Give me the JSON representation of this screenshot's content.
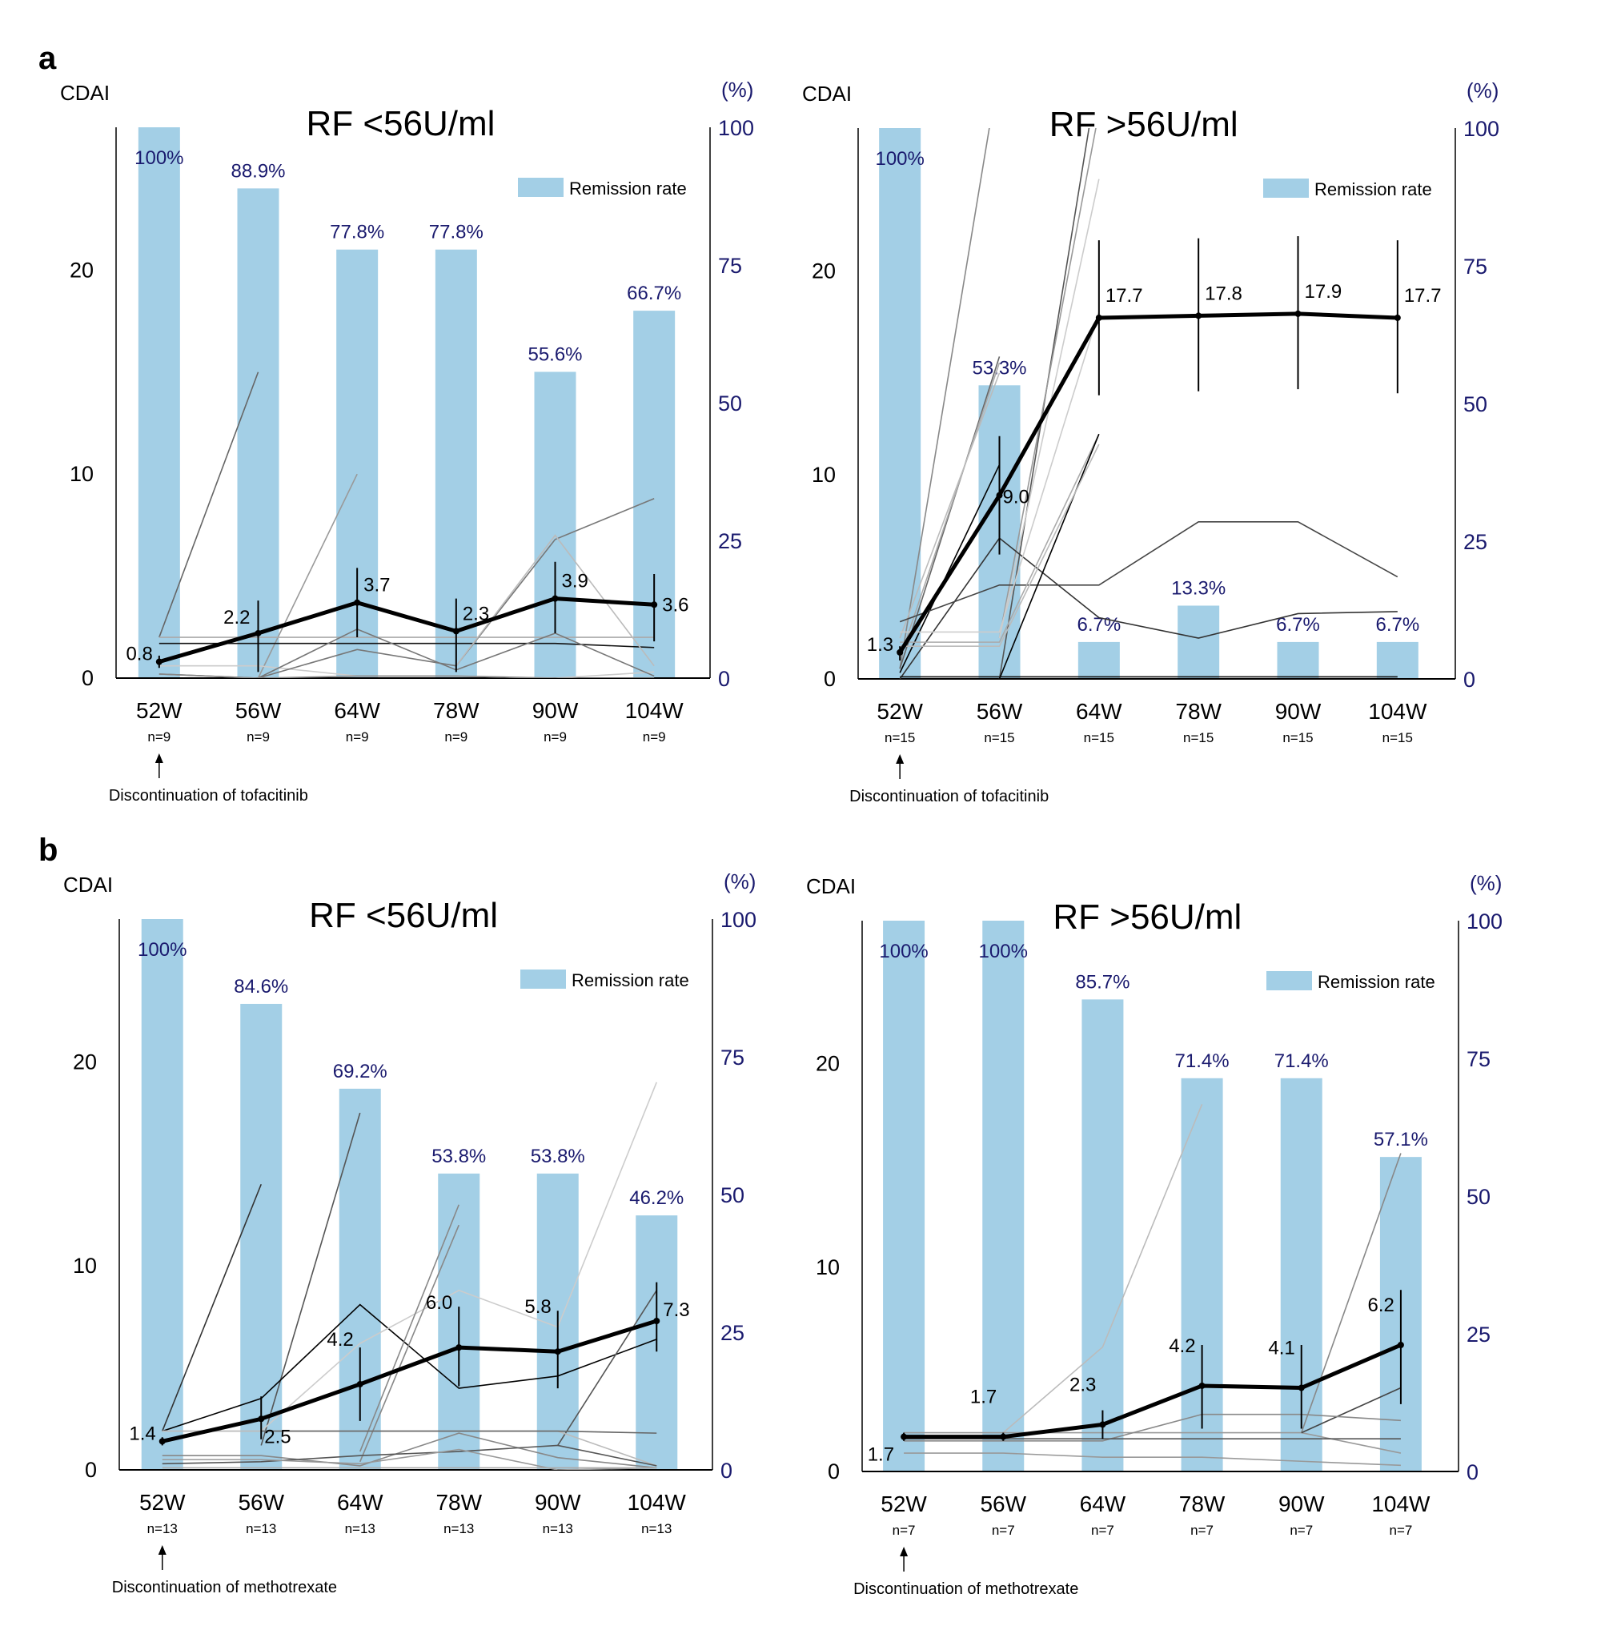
{
  "figure": {
    "panel_letters": [
      "a",
      "b"
    ],
    "colors": {
      "bar": "#a3cfe6",
      "percent_text": "#1a1a6e",
      "mean_line": "#000000"
    }
  },
  "chart_data": [
    {
      "id": "a-left",
      "panel": "a",
      "type": "bar+line",
      "title": "RF <56U/ml",
      "ylabel_left": "CDAI",
      "ylabel_right": "(%)",
      "left_ticks": [
        0,
        10,
        20
      ],
      "right_ticks": [
        0,
        25,
        50,
        75,
        100
      ],
      "ylim_left": [
        0,
        27
      ],
      "ylim_right": [
        0,
        100
      ],
      "categories": [
        "52W",
        "56W",
        "64W",
        "78W",
        "90W",
        "104W"
      ],
      "n_labels": [
        "n=9",
        "n=9",
        "n=9",
        "n=9",
        "n=9",
        "n=9"
      ],
      "legend": "Remission rate",
      "legend_position": "top-right",
      "annotation": "Discontinuation of tofacitinib",
      "remission_rate": [
        100,
        88.9,
        77.8,
        77.8,
        55.6,
        66.7
      ],
      "remission_labels": [
        "100%",
        "88.9%",
        "77.8%",
        "77.8%",
        "55.6%",
        "66.7%"
      ],
      "mean_cdai": [
        0.8,
        2.2,
        3.7,
        2.3,
        3.9,
        3.6
      ],
      "mean_labels": [
        "0.8",
        "2.2",
        "3.7",
        "2.3",
        "3.9",
        "3.6"
      ],
      "error_bar": [
        [
          0.5,
          1.1
        ],
        [
          0.3,
          3.8
        ],
        [
          2.0,
          5.4
        ],
        [
          0.3,
          3.9
        ],
        [
          2.2,
          5.7
        ],
        [
          1.8,
          5.1
        ]
      ],
      "individuals": [
        {
          "shade": "#666666",
          "values": [
            2.0,
            15.0
          ]
        },
        {
          "shade": "#999999",
          "values": [
            null,
            0,
            10.0
          ]
        },
        {
          "shade": "#aaaaaa",
          "values": [
            2.0,
            2.0,
            2.0,
            2.0,
            2.0,
            2.0
          ]
        },
        {
          "shade": "#111111",
          "values": [
            1.7,
            1.7,
            1.7,
            1.7,
            1.7,
            1.5
          ]
        },
        {
          "shade": "#cccccc",
          "values": [
            0.6,
            0.6,
            0.1,
            0.1,
            0.0,
            0.3
          ]
        },
        {
          "shade": "#777777",
          "values": [
            0.2,
            0.0,
            2.4,
            0.4,
            2.2,
            0.1
          ]
        },
        {
          "shade": "#777777",
          "values": [
            null,
            0.0,
            1.4,
            0.6,
            6.8,
            8.8
          ]
        },
        {
          "shade": "#bbbbbb",
          "values": [
            null,
            null,
            null,
            0.6,
            7.0,
            0.6
          ]
        },
        {
          "shade": "#888888",
          "values": [
            0.2,
            0.0,
            0.1,
            0.1,
            0.0,
            0.0
          ]
        }
      ]
    },
    {
      "id": "a-right",
      "panel": "a",
      "type": "bar+line",
      "title": "RF >56U/ml",
      "ylabel_left": "CDAI",
      "ylabel_right": "(%)",
      "left_ticks": [
        0,
        10,
        20
      ],
      "right_ticks": [
        0,
        25,
        50,
        75,
        100
      ],
      "ylim_left": [
        0,
        27
      ],
      "ylim_right": [
        0,
        100
      ],
      "categories": [
        "52W",
        "56W",
        "64W",
        "78W",
        "90W",
        "104W"
      ],
      "n_labels": [
        "n=15",
        "n=15",
        "n=15",
        "n=15",
        "n=15",
        "n=15"
      ],
      "legend": "Remission rate",
      "legend_position": "top-right",
      "annotation": "Discontinuation of tofacitinib",
      "remission_rate": [
        100,
        53.3,
        6.7,
        13.3,
        6.7,
        6.7
      ],
      "remission_labels": [
        "100%",
        "53.3%",
        "6.7%",
        "13.3%",
        "6.7%",
        "6.7%"
      ],
      "mean_cdai": [
        1.3,
        9.0,
        17.7,
        17.8,
        17.9,
        17.7
      ],
      "mean_labels": [
        "1.3",
        "9.0",
        "17.7",
        "17.8",
        "17.9",
        "17.7"
      ],
      "error_bar": [
        [
          0.9,
          1.6
        ],
        [
          6.1,
          11.9
        ],
        [
          13.9,
          21.5
        ],
        [
          14.1,
          21.6
        ],
        [
          14.2,
          21.7
        ],
        [
          14.0,
          21.5
        ]
      ],
      "individuals": [
        {
          "shade": "#888888",
          "values": [
            0.5,
            30.0
          ]
        },
        {
          "shade": "#555555",
          "values": [
            null,
            0.0,
            30.0
          ]
        },
        {
          "shade": "#999999",
          "values": [
            null,
            2.0,
            27.8
          ]
        },
        {
          "shade": "#cccccc",
          "values": [
            null,
            2.0,
            24.5
          ]
        },
        {
          "shade": "#666666",
          "values": [
            0.5,
            15.8
          ]
        },
        {
          "shade": "#aaaaaa",
          "values": [
            1.0,
            15.5
          ]
        },
        {
          "shade": "#bbbbbb",
          "values": [
            2.0,
            15.0
          ]
        },
        {
          "shade": "#000000",
          "values": [
            0.3,
            10.5
          ]
        },
        {
          "shade": "#333333",
          "values": [
            0.0,
            6.9,
            3.0,
            2.0,
            3.2,
            3.3
          ]
        },
        {
          "shade": "#444444",
          "values": [
            2.8,
            4.6,
            4.6,
            7.7,
            7.7,
            5.0
          ]
        },
        {
          "shade": "#cccccc",
          "values": [
            2.3,
            2.3,
            18.0
          ]
        },
        {
          "shade": "#aaaaaa",
          "values": [
            1.8,
            1.8,
            12.0
          ]
        },
        {
          "shade": "#000000",
          "values": [
            null,
            0.0,
            12.0
          ]
        },
        {
          "shade": "#bbbbbb",
          "values": [
            1.6,
            1.6,
            11.5
          ]
        },
        {
          "shade": "#111111",
          "values": [
            0.1,
            0.1,
            0.1,
            0.1,
            0.1,
            0.1
          ]
        }
      ]
    },
    {
      "id": "b-left",
      "panel": "b",
      "type": "bar+line",
      "title": "RF <56U/ml",
      "ylabel_left": "CDAI",
      "ylabel_right": "(%)",
      "left_ticks": [
        0,
        10,
        20
      ],
      "right_ticks": [
        0,
        25,
        50,
        75,
        100
      ],
      "ylim_left": [
        0,
        27
      ],
      "ylim_right": [
        0,
        100
      ],
      "categories": [
        "52W",
        "56W",
        "64W",
        "78W",
        "90W",
        "104W"
      ],
      "n_labels": [
        "n=13",
        "n=13",
        "n=13",
        "n=13",
        "n=13",
        "n=13"
      ],
      "legend": "Remission rate",
      "legend_position": "top-right",
      "annotation": "Discontinuation of methotrexate",
      "remission_rate": [
        100,
        84.6,
        69.2,
        53.8,
        53.8,
        46.2
      ],
      "remission_labels": [
        "100%",
        "84.6%",
        "69.2%",
        "53.8%",
        "53.8%",
        "46.2%"
      ],
      "mean_cdai": [
        1.4,
        2.5,
        4.2,
        6.0,
        5.8,
        7.3
      ],
      "mean_labels": [
        "1.4",
        "2.5",
        "4.2",
        "6.0",
        "5.8",
        "7.3"
      ],
      "error_bar": [
        [
          1.2,
          1.6
        ],
        [
          1.5,
          3.6
        ],
        [
          2.4,
          6.0
        ],
        [
          4.1,
          8.0
        ],
        [
          4.0,
          7.8
        ],
        [
          5.8,
          9.2
        ]
      ],
      "individuals": [
        {
          "shade": "#333333",
          "values": [
            1.9,
            14.0
          ]
        },
        {
          "shade": "#555555",
          "values": [
            null,
            1.2,
            17.5
          ]
        },
        {
          "shade": "#000000",
          "values": [
            1.9,
            3.5,
            8.1,
            4.0,
            4.6,
            6.4
          ]
        },
        {
          "shade": "#cccccc",
          "values": [
            1.9,
            1.9,
            6.2,
            8.8,
            7.0,
            19.0
          ]
        },
        {
          "shade": "#888888",
          "values": [
            null,
            null,
            0.9,
            13.0
          ]
        },
        {
          "shade": "#888888",
          "values": [
            null,
            null,
            0.4,
            12.0
          ]
        },
        {
          "shade": "#555555",
          "values": [
            null,
            null,
            null,
            null,
            1.2,
            8.8
          ]
        },
        {
          "shade": "#bbbbbb",
          "values": [
            1.9,
            1.9,
            1.9,
            1.9,
            1.9,
            0.2
          ]
        },
        {
          "shade": "#666666",
          "values": [
            null,
            1.9,
            1.9,
            1.9,
            1.9,
            1.8
          ]
        },
        {
          "shade": "#888888",
          "values": [
            0.7,
            0.7,
            0.2,
            1.8,
            0.6,
            0.1
          ]
        },
        {
          "shade": "#555555",
          "values": [
            0.3,
            0.4,
            0.7,
            0.9,
            1.2,
            0.2
          ]
        },
        {
          "shade": "#999999",
          "values": [
            0.5,
            0.5,
            0.3,
            1.0,
            0.0,
            0.1
          ]
        },
        {
          "shade": "#aaaaaa",
          "values": [
            0.1,
            0.1,
            0.1,
            0.1,
            0.1,
            0.1
          ]
        }
      ]
    },
    {
      "id": "b-right",
      "panel": "b",
      "type": "bar+line",
      "title": "RF >56U/ml",
      "ylabel_left": "CDAI",
      "ylabel_right": "(%)",
      "left_ticks": [
        0,
        10,
        20
      ],
      "right_ticks": [
        0,
        25,
        50,
        75,
        100
      ],
      "ylim_left": [
        0,
        27
      ],
      "ylim_right": [
        0,
        100
      ],
      "categories": [
        "52W",
        "56W",
        "64W",
        "78W",
        "90W",
        "104W"
      ],
      "n_labels": [
        "n=7",
        "n=7",
        "n=7",
        "n=7",
        "n=7",
        "n=7"
      ],
      "legend": "Remission rate",
      "legend_position": "top-right",
      "annotation": "Discontinuation of methotrexate",
      "remission_rate": [
        100,
        100,
        85.7,
        71.4,
        71.4,
        57.1
      ],
      "remission_labels": [
        "100%",
        "100%",
        "85.7%",
        "71.4%",
        "71.4%",
        "57.1%"
      ],
      "mean_cdai": [
        1.7,
        1.7,
        2.3,
        4.2,
        4.1,
        6.2
      ],
      "mean_labels": [
        "1.7",
        "1.7",
        "2.3",
        "4.2",
        "4.1",
        "6.2"
      ],
      "error_bar": [
        [
          1.5,
          1.9
        ],
        [
          1.5,
          1.9
        ],
        [
          1.6,
          3.0
        ],
        [
          2.1,
          6.2
        ],
        [
          2.1,
          6.2
        ],
        [
          3.3,
          8.9
        ]
      ],
      "individuals": [
        {
          "shade": "#bbbbbb",
          "values": [
            null,
            1.9,
            6.1,
            18.0
          ]
        },
        {
          "shade": "#888888",
          "values": [
            null,
            null,
            null,
            null,
            1.9,
            15.6
          ]
        },
        {
          "shade": "#999999",
          "values": [
            1.9,
            1.9,
            1.9,
            1.9,
            1.9,
            0.9
          ]
        },
        {
          "shade": "#444444",
          "values": [
            null,
            null,
            null,
            null,
            1.9,
            4.1
          ]
        },
        {
          "shade": "#888888",
          "values": [
            1.5,
            1.5,
            1.5,
            2.8,
            2.8,
            2.5
          ]
        },
        {
          "shade": "#555555",
          "values": [
            1.6,
            1.6,
            1.6,
            1.6,
            1.6,
            1.6
          ]
        },
        {
          "shade": "#999999",
          "values": [
            0.9,
            0.9,
            0.7,
            0.7,
            0.5,
            0.3
          ]
        }
      ]
    }
  ]
}
